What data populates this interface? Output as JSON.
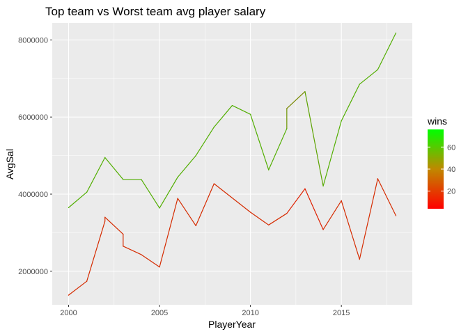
{
  "chart_data": {
    "type": "line",
    "title": "Top team vs Worst team avg player salary",
    "xlabel": "PlayerYear",
    "ylabel": "AvgSal",
    "xlim": [
      1999.1,
      2018.9
    ],
    "ylim": [
      1130000,
      8440000
    ],
    "x_ticks": [
      2000,
      2005,
      2010,
      2015
    ],
    "y_ticks": [
      2000000,
      4000000,
      6000000,
      8000000
    ],
    "x_tick_labels": [
      "2000",
      "2005",
      "2010",
      "2015"
    ],
    "y_tick_labels": [
      "2000000",
      "4000000",
      "6000000",
      "8000000"
    ],
    "grid": true,
    "legend": {
      "title": "wins",
      "position": "right",
      "type": "colorbar",
      "range": [
        4,
        76
      ],
      "ticks": [
        20,
        40,
        60
      ],
      "tick_labels": [
        "20",
        "40",
        "60"
      ],
      "color_low": "#ff0000",
      "color_high": "#00ff00"
    },
    "series": [
      {
        "points": [
          {
            "x": 2000,
            "y": 3650000,
            "wins": 53
          },
          {
            "x": 2001,
            "y": 4050000,
            "wins": 53
          },
          {
            "x": 2002,
            "y": 4950000,
            "wins": 53
          },
          {
            "x": 2003,
            "y": 4380000,
            "wins": 53
          },
          {
            "x": 2004,
            "y": 4380000,
            "wins": 53
          },
          {
            "x": 2005,
            "y": 3640000,
            "wins": 53
          },
          {
            "x": 2006,
            "y": 4440000,
            "wins": 53
          },
          {
            "x": 2007,
            "y": 5000000,
            "wins": 53
          },
          {
            "x": 2008,
            "y": 5740000,
            "wins": 53
          },
          {
            "x": 2009,
            "y": 6300000,
            "wins": 53
          },
          {
            "x": 2010,
            "y": 6070000,
            "wins": 53
          },
          {
            "x": 2011,
            "y": 4630000,
            "wins": 53
          },
          {
            "x": 2012,
            "y": 5700000,
            "wins": 53
          },
          {
            "x": 2012,
            "y": 6220000,
            "wins": 38
          },
          {
            "x": 2013,
            "y": 6660000,
            "wins": 47
          },
          {
            "x": 2014,
            "y": 4210000,
            "wins": 53
          },
          {
            "x": 2015,
            "y": 5900000,
            "wins": 53
          },
          {
            "x": 2016,
            "y": 6850000,
            "wins": 53
          },
          {
            "x": 2017,
            "y": 7230000,
            "wins": 53
          },
          {
            "x": 2018,
            "y": 8180000,
            "wins": 53
          }
        ]
      },
      {
        "points": [
          {
            "x": 2000,
            "y": 1380000,
            "wins": 16
          },
          {
            "x": 2001,
            "y": 1740000,
            "wins": 16
          },
          {
            "x": 2002,
            "y": 3300000,
            "wins": 16
          },
          {
            "x": 2002,
            "y": 3400000,
            "wins": 16
          },
          {
            "x": 2003,
            "y": 2960000,
            "wins": 16
          },
          {
            "x": 2003,
            "y": 2650000,
            "wins": 16
          },
          {
            "x": 2004,
            "y": 2430000,
            "wins": 16
          },
          {
            "x": 2005,
            "y": 2110000,
            "wins": 16
          },
          {
            "x": 2006,
            "y": 3890000,
            "wins": 16
          },
          {
            "x": 2007,
            "y": 3180000,
            "wins": 16
          },
          {
            "x": 2008,
            "y": 4270000,
            "wins": 16
          },
          {
            "x": 2010,
            "y": 3530000,
            "wins": 16
          },
          {
            "x": 2011,
            "y": 3200000,
            "wins": 16
          },
          {
            "x": 2012,
            "y": 3500000,
            "wins": 16
          },
          {
            "x": 2013,
            "y": 4140000,
            "wins": 10
          },
          {
            "x": 2014,
            "y": 3080000,
            "wins": 16
          },
          {
            "x": 2015,
            "y": 3830000,
            "wins": 16
          },
          {
            "x": 2016,
            "y": 2310000,
            "wins": 16
          },
          {
            "x": 2017,
            "y": 4400000,
            "wins": 16
          },
          {
            "x": 2018,
            "y": 3440000,
            "wins": 16
          }
        ]
      }
    ]
  }
}
